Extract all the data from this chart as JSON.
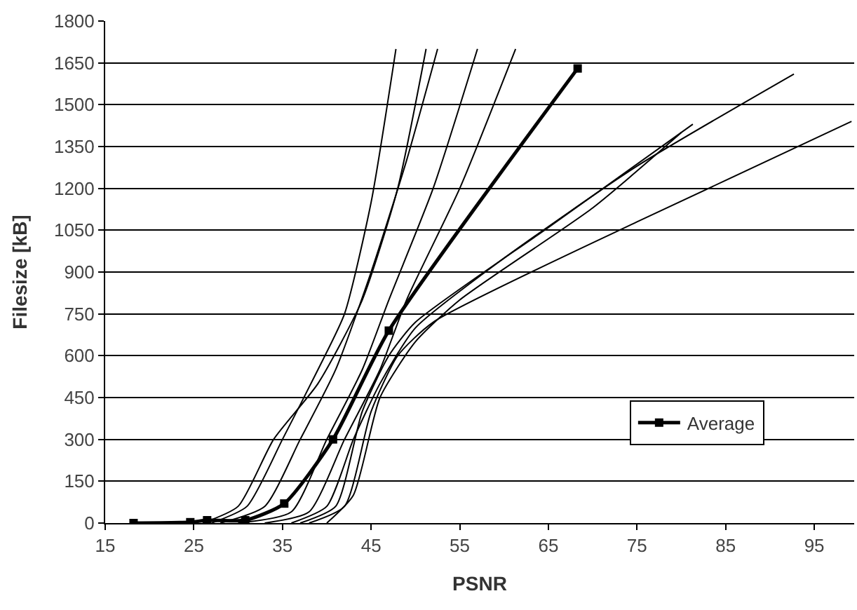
{
  "chart_data": {
    "type": "line",
    "xlabel": "PSNR",
    "ylabel": "Filesize [kB]",
    "xlim": [
      15,
      99.5
    ],
    "xticks": [
      15,
      25,
      35,
      45,
      55,
      65,
      75,
      85,
      95
    ],
    "ylim": [
      0,
      1800
    ],
    "yticks": [
      0,
      150,
      300,
      450,
      600,
      750,
      900,
      1050,
      1200,
      1350,
      1500,
      1650,
      1800
    ],
    "grid": "y",
    "legend": "right",
    "line_style": "solid",
    "series": [
      {
        "color": "#000000",
        "marker": "none",
        "x": [
          27,
          31,
          35,
          39,
          42,
          45,
          47.8
        ],
        "values": [
          0,
          60,
          300,
          550,
          750,
          1150,
          1700
        ]
      },
      {
        "color": "#000000",
        "marker": "none",
        "x": [
          26,
          30,
          34,
          39,
          44,
          48,
          51.2
        ],
        "values": [
          0,
          60,
          300,
          500,
          800,
          1200,
          1700
        ]
      },
      {
        "color": "#000000",
        "marker": "none",
        "x": [
          28,
          33,
          37,
          41,
          45,
          49,
          52.5
        ],
        "values": [
          0,
          60,
          300,
          550,
          900,
          1300,
          1700
        ]
      },
      {
        "color": "#000000",
        "marker": "none",
        "x": [
          30,
          36,
          40,
          44,
          47,
          52,
          57
        ],
        "values": [
          0,
          40,
          300,
          550,
          800,
          1200,
          1700
        ]
      },
      {
        "color": "#000000",
        "marker": "none",
        "x": [
          33,
          38,
          42,
          46,
          49,
          55,
          61.3
        ],
        "values": [
          0,
          40,
          300,
          550,
          800,
          1200,
          1700
        ]
      },
      {
        "color": "#000000",
        "marker": "none",
        "x": [
          36,
          40,
          43,
          46,
          50,
          60,
          75,
          92.7
        ],
        "values": [
          0,
          60,
          300,
          500,
          700,
          950,
          1280,
          1610
        ]
      },
      {
        "color": "#000000",
        "marker": "none",
        "x": [
          37,
          41,
          44,
          47,
          50,
          65,
          81.3
        ],
        "values": [
          0,
          60,
          400,
          600,
          720,
          1060,
          1430
        ]
      },
      {
        "color": "#000000",
        "marker": "none",
        "x": [
          38,
          42,
          45,
          48,
          52,
          75,
          99.2
        ],
        "values": [
          0,
          60,
          400,
          600,
          720,
          1080,
          1440
        ]
      },
      {
        "color": "#000000",
        "marker": "none",
        "x": [
          40,
          43,
          46,
          50,
          55,
          70,
          80
        ],
        "values": [
          0,
          100,
          450,
          650,
          800,
          1130,
          1400
        ]
      },
      {
        "name": "Average",
        "color": "#000000",
        "marker": "square",
        "x": [
          18.2,
          24.6,
          26.5,
          30.8,
          35.2,
          40.7,
          47,
          68.3
        ],
        "values": [
          0,
          3,
          10,
          10,
          70,
          300,
          690,
          1630
        ]
      }
    ]
  }
}
